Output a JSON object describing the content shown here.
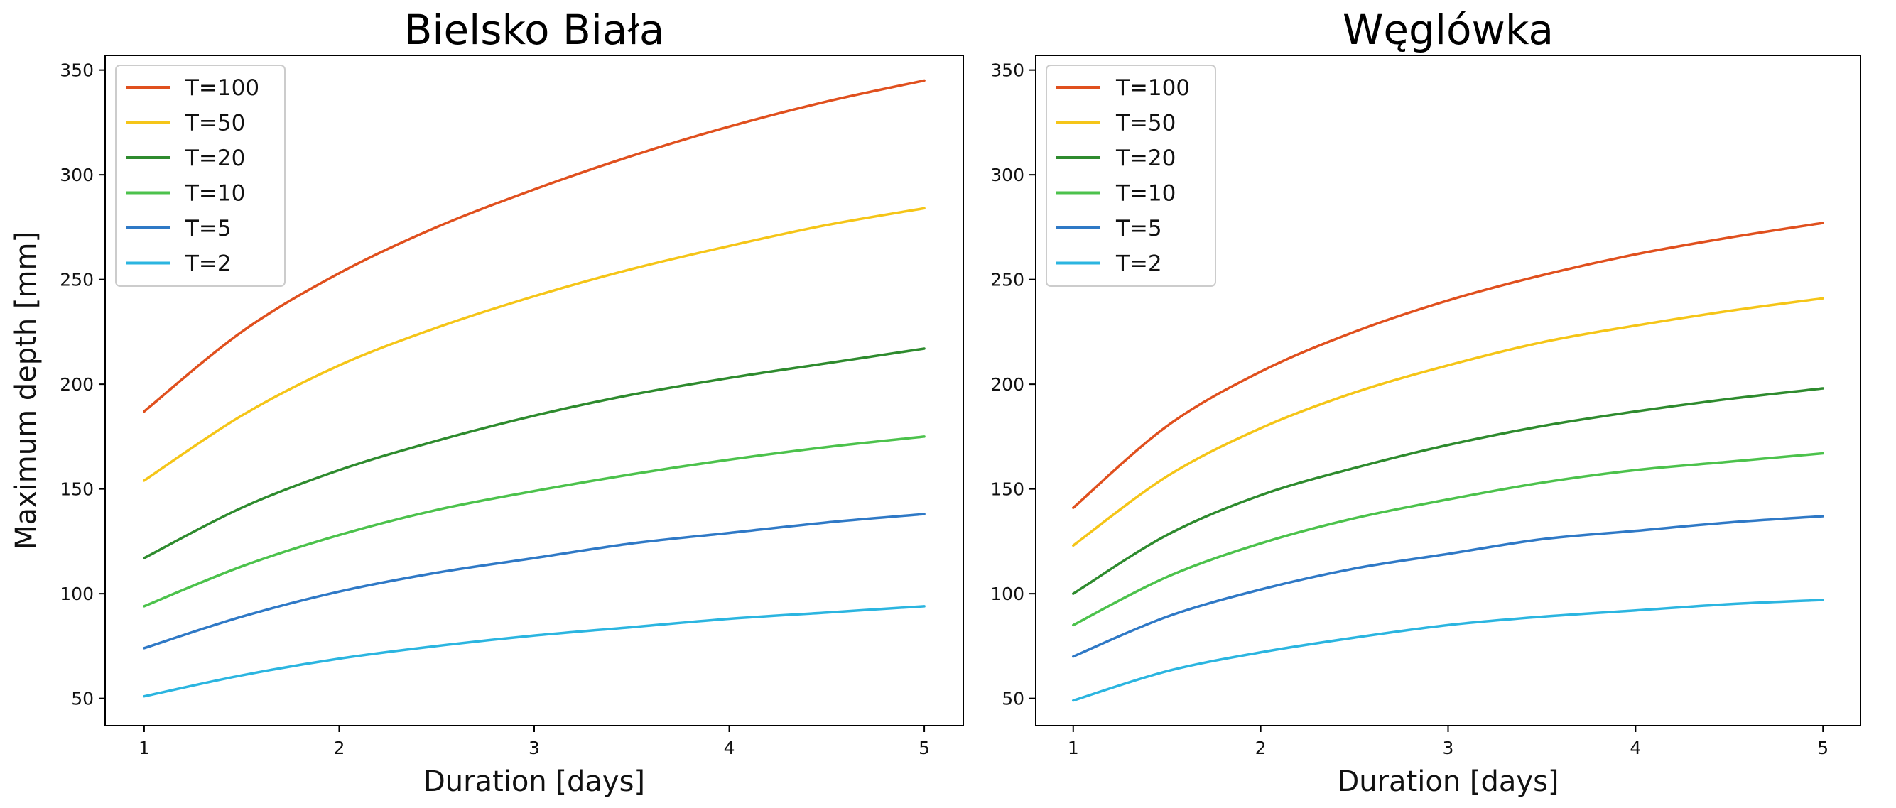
{
  "chart_data": [
    {
      "type": "line",
      "title": "Bielsko Biała",
      "xlabel": "Duration [days]",
      "ylabel": "Maximum depth [mm]",
      "xlim": [
        0.8,
        5.2
      ],
      "ylim": [
        37,
        357
      ],
      "xticks": [
        1,
        2,
        3,
        4,
        5
      ],
      "yticks": [
        50,
        100,
        150,
        200,
        250,
        300,
        350
      ],
      "x": [
        1,
        1.5,
        2,
        2.5,
        3,
        3.5,
        4,
        4.5,
        5
      ],
      "legend_position": "upper-left",
      "series": [
        {
          "name": "T=100",
          "color": "#e0501e",
          "values": [
            187,
            225,
            253,
            275,
            293,
            309,
            323,
            335,
            345
          ]
        },
        {
          "name": "T=50",
          "color": "#f5c518",
          "values": [
            154,
            185,
            209,
            227,
            242,
            255,
            266,
            276,
            284
          ]
        },
        {
          "name": "T=20",
          "color": "#2e8b2e",
          "values": [
            117,
            141,
            159,
            173,
            185,
            195,
            203,
            210,
            217
          ]
        },
        {
          "name": "T=10",
          "color": "#4cc24c",
          "values": [
            94,
            113,
            128,
            140,
            149,
            157,
            164,
            170,
            175
          ]
        },
        {
          "name": "T=5",
          "color": "#2f79c6",
          "values": [
            74,
            89,
            101,
            110,
            117,
            124,
            129,
            134,
            138
          ]
        },
        {
          "name": "T=2",
          "color": "#2bb5e0",
          "values": [
            51,
            61,
            69,
            75,
            80,
            84,
            88,
            91,
            94
          ]
        }
      ]
    },
    {
      "type": "line",
      "title": "Węglówka",
      "xlabel": "Duration [days]",
      "ylabel": "",
      "xlim": [
        0.8,
        5.2
      ],
      "ylim": [
        37,
        357
      ],
      "xticks": [
        1,
        2,
        3,
        4,
        5
      ],
      "yticks": [
        50,
        100,
        150,
        200,
        250,
        300,
        350
      ],
      "x": [
        1,
        1.5,
        2,
        2.5,
        3,
        3.5,
        4,
        4.5,
        5
      ],
      "legend_position": "upper-left",
      "series": [
        {
          "name": "T=100",
          "color": "#e0501e",
          "values": [
            141,
            180,
            206,
            225,
            240,
            252,
            262,
            270,
            277
          ]
        },
        {
          "name": "T=50",
          "color": "#f5c518",
          "values": [
            123,
            156,
            179,
            196,
            209,
            220,
            228,
            235,
            241
          ]
        },
        {
          "name": "T=20",
          "color": "#2e8b2e",
          "values": [
            100,
            128,
            147,
            160,
            171,
            180,
            187,
            193,
            198
          ]
        },
        {
          "name": "T=10",
          "color": "#4cc24c",
          "values": [
            85,
            108,
            124,
            136,
            145,
            153,
            159,
            163,
            167
          ]
        },
        {
          "name": "T=5",
          "color": "#2f79c6",
          "values": [
            70,
            89,
            102,
            112,
            119,
            126,
            130,
            134,
            137
          ]
        },
        {
          "name": "T=2",
          "color": "#2bb5e0",
          "values": [
            49,
            63,
            72,
            79,
            85,
            89,
            92,
            95,
            97
          ]
        }
      ]
    }
  ]
}
